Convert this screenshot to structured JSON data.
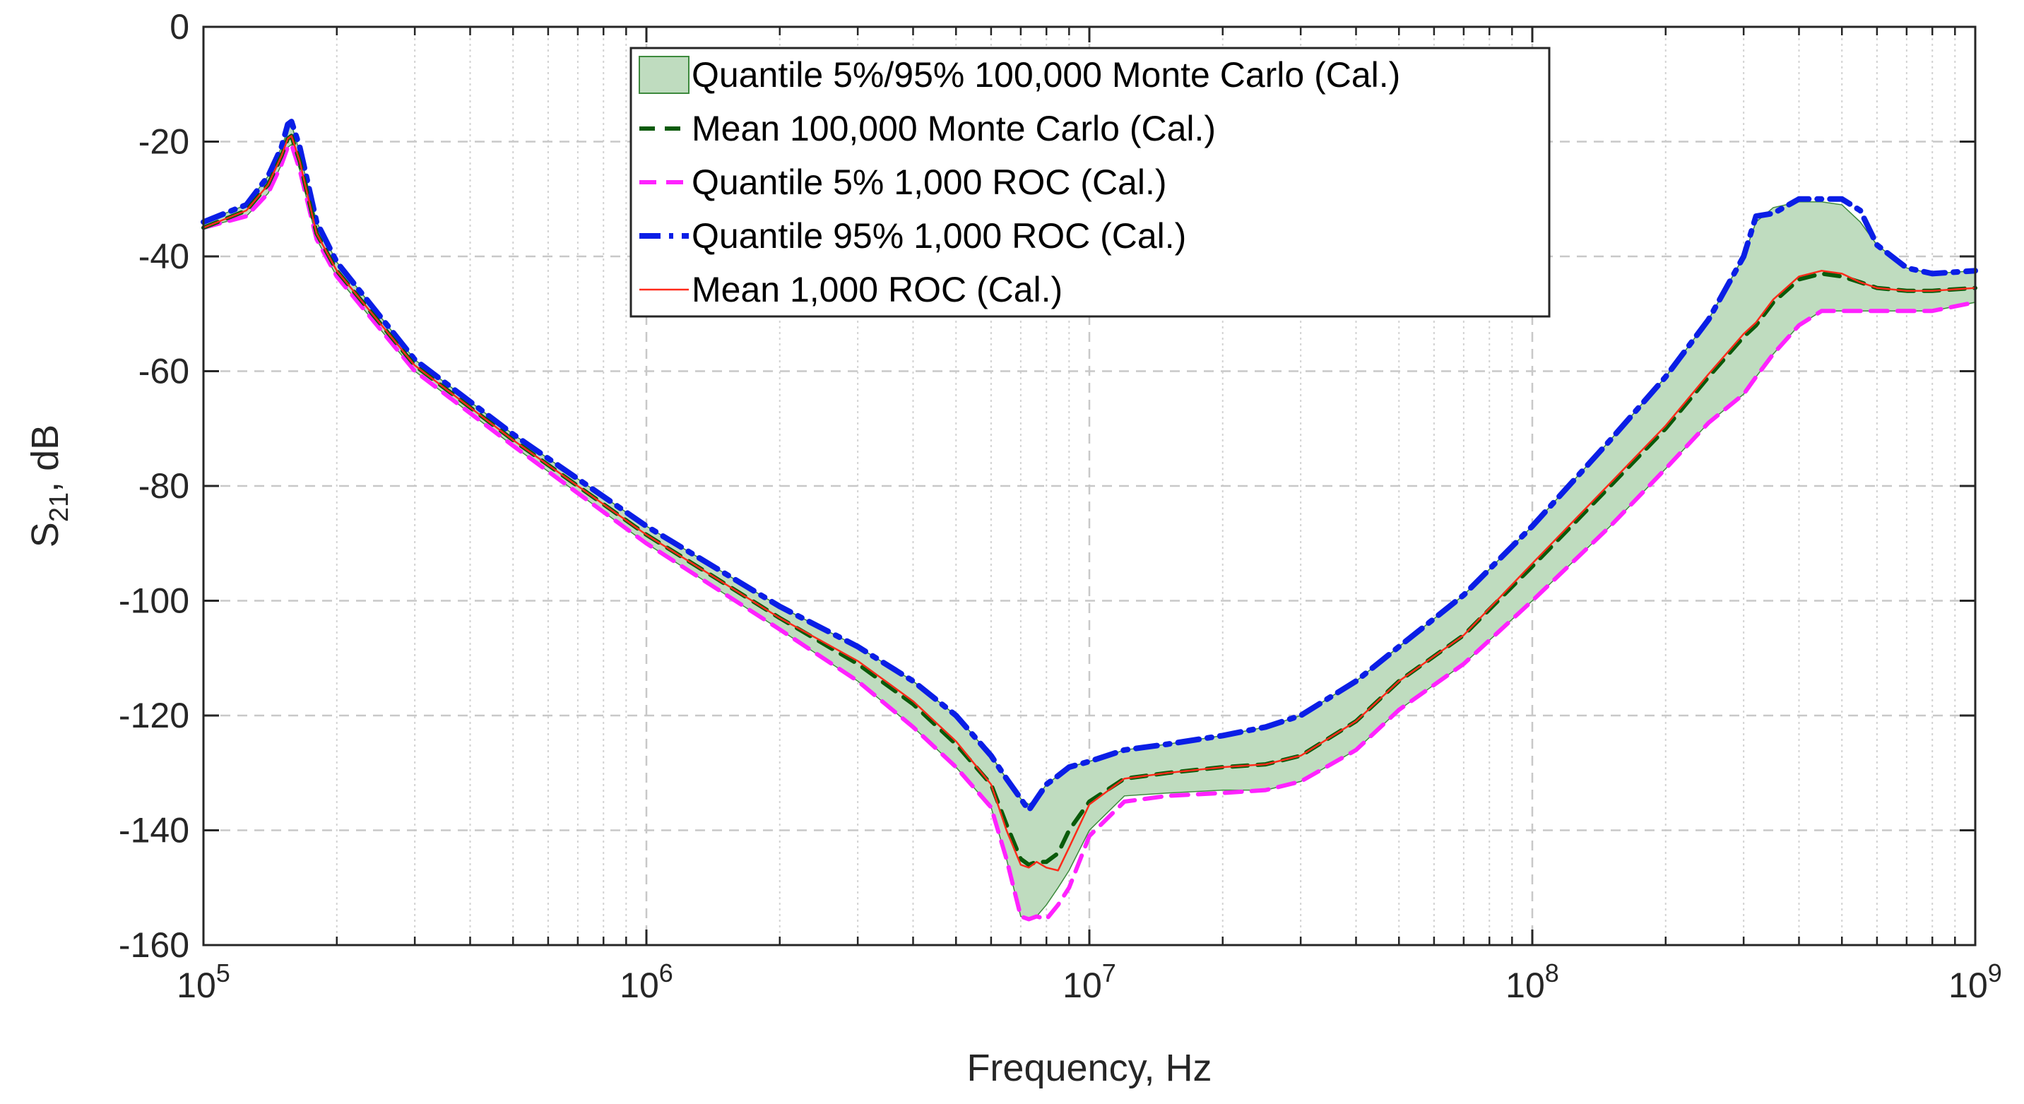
{
  "colors": {
    "band_fill": "#bfdcbf",
    "band_edge": "#3d8a3d",
    "mc_mean": "#0a5a0a",
    "roc_q5": "#ff22ff",
    "roc_q95": "#0a1ee6",
    "roc_mean": "#ff2a1a",
    "grid": "#c8c8c8",
    "axis": "#262626"
  },
  "chart_data": {
    "type": "line",
    "title": "",
    "xlabel": "Frequency, Hz",
    "ylabel_main": "S",
    "ylabel_sub": "21",
    "ylabel_tail": ", dB",
    "xscale": "log",
    "xlim": [
      100000,
      1000000000
    ],
    "ylim": [
      -160,
      0
    ],
    "grid": true,
    "legend_position": "top-center",
    "x_ticks": [
      {
        "value": 100000,
        "base": "10",
        "exp": "5"
      },
      {
        "value": 1000000,
        "base": "10",
        "exp": "6"
      },
      {
        "value": 10000000,
        "base": "10",
        "exp": "7"
      },
      {
        "value": 100000000,
        "base": "10",
        "exp": "8"
      },
      {
        "value": 1000000000,
        "base": "10",
        "exp": "9"
      }
    ],
    "y_ticks": [
      {
        "value": 0,
        "label": "0"
      },
      {
        "value": -20,
        "label": "-20"
      },
      {
        "value": -40,
        "label": "-40"
      },
      {
        "value": -60,
        "label": "-60"
      },
      {
        "value": -80,
        "label": "-80"
      },
      {
        "value": -100,
        "label": "-100"
      },
      {
        "value": -120,
        "label": "-120"
      },
      {
        "value": -140,
        "label": "-140"
      },
      {
        "value": -160,
        "label": "-160"
      }
    ],
    "x": [
      100000,
      125000,
      140000,
      150000,
      155000,
      158000,
      165000,
      180000,
      200000,
      300000,
      500000,
      1000000,
      2000000,
      3000000,
      4000000,
      5000000,
      6000000,
      6500000,
      7000000,
      7300000,
      7600000,
      8000000,
      8500000,
      9000000,
      10000000,
      12000000,
      15000000,
      20000000,
      25000000,
      30000000,
      40000000,
      50000000,
      70000000,
      100000000,
      150000000,
      200000000,
      250000000,
      300000000,
      320000000,
      350000000,
      400000000,
      450000000,
      500000000,
      550000000,
      600000000,
      700000000,
      800000000,
      1000000000
    ],
    "series": [
      {
        "name": "Quantile 5%/95% 100,000 Monte Carlo (Cal.)",
        "kind": "band",
        "upper": [
          -34,
          -31,
          -26,
          -21,
          -18,
          -17,
          -22,
          -34,
          -41,
          -58,
          -71,
          -87,
          -101,
          -108,
          -114,
          -120,
          -127,
          -131,
          -134.5,
          -135.5,
          -134.5,
          -132,
          -130.5,
          -129,
          -128,
          -126,
          -125,
          -123.5,
          -122,
          -120,
          -114,
          -108,
          -99,
          -87,
          -72,
          -61,
          -51,
          -40,
          -34,
          -31.5,
          -30.5,
          -30.5,
          -31,
          -34,
          -38,
          -42,
          -43,
          -42.5
        ],
        "lower": [
          -35,
          -33,
          -29,
          -24,
          -21,
          -20.5,
          -25,
          -37,
          -43.5,
          -60,
          -73,
          -90,
          -105,
          -114,
          -122,
          -129,
          -136,
          -145,
          -155,
          -155.5,
          -155,
          -153,
          -150,
          -147,
          -140,
          -134,
          -133.5,
          -133,
          -133,
          -131.5,
          -126,
          -119,
          -111,
          -100,
          -87,
          -77,
          -69,
          -64,
          -61,
          -57,
          -52,
          -49.5,
          -49.5,
          -49.5,
          -49.5,
          -49.5,
          -49.5,
          -48
        ]
      },
      {
        "name": "Mean 100,000 Monte Carlo (Cal.)",
        "kind": "line",
        "values": [
          -35,
          -32,
          -27.5,
          -22.5,
          -19.5,
          -19,
          -23.5,
          -36,
          -42.5,
          -59,
          -72,
          -88.5,
          -103,
          -111,
          -118,
          -125,
          -132,
          -139,
          -145,
          -146,
          -145.5,
          -145.5,
          -144,
          -140,
          -135,
          -131,
          -130,
          -129,
          -128.5,
          -127,
          -121,
          -114,
          -106,
          -94,
          -80,
          -70,
          -61,
          -54,
          -52,
          -48,
          -44,
          -43,
          -43.5,
          -44.5,
          -45.5,
          -46,
          -46,
          -45.5
        ]
      },
      {
        "name": "Quantile 5% 1,000 ROC (Cal.)",
        "kind": "line",
        "values": [
          -35,
          -33,
          -29,
          -24,
          -21,
          -20.5,
          -25,
          -37,
          -43.5,
          -60,
          -73,
          -90,
          -105,
          -114,
          -122,
          -129,
          -136,
          -145,
          -155,
          -155.5,
          -155,
          -155.5,
          -153,
          -150,
          -141,
          -135,
          -134,
          -133.5,
          -133,
          -131.5,
          -126,
          -119,
          -111,
          -100,
          -87,
          -77,
          -69,
          -64,
          -61,
          -57,
          -52,
          -49.5,
          -49.5,
          -49.5,
          -49.5,
          -49.5,
          -49.5,
          -48
        ]
      },
      {
        "name": "Quantile 95% 1,000 ROC (Cal.)",
        "kind": "line",
        "values": [
          -34,
          -31,
          -26,
          -21,
          -17,
          -16.5,
          -21,
          -34,
          -41,
          -58,
          -71,
          -87,
          -101,
          -108,
          -114,
          -120,
          -127,
          -131,
          -134.5,
          -136.5,
          -134.5,
          -132,
          -130.5,
          -129,
          -128,
          -126,
          -125,
          -123.5,
          -122,
          -120,
          -114,
          -108,
          -99,
          -87,
          -72,
          -61,
          -51,
          -40,
          -33,
          -32.5,
          -30,
          -30,
          -30,
          -32,
          -38,
          -42,
          -43,
          -42.5
        ]
      },
      {
        "name": "Mean 1,000 ROC (Cal.)",
        "kind": "line",
        "values": [
          -35,
          -32,
          -27.5,
          -22.5,
          -19.5,
          -19,
          -23.5,
          -36,
          -42.5,
          -59,
          -72,
          -88.5,
          -103,
          -110.5,
          -117.5,
          -124.5,
          -132,
          -140,
          -146,
          -146.5,
          -145.5,
          -146.5,
          -147,
          -143,
          -135.5,
          -131,
          -130,
          -129,
          -128.5,
          -127,
          -121,
          -114,
          -106,
          -93.5,
          -79.5,
          -69.5,
          -60.5,
          -53.5,
          -51.5,
          -47.5,
          -43.5,
          -42.5,
          -43,
          -44.5,
          -45.5,
          -46,
          -46,
          -45.5
        ]
      }
    ]
  },
  "legend": {
    "items": [
      {
        "label": "Quantile 5%/95% 100,000 Monte Carlo (Cal.)"
      },
      {
        "label": "Mean 100,000 Monte Carlo (Cal.)"
      },
      {
        "label": "Quantile 5% 1,000 ROC (Cal.)"
      },
      {
        "label": "Quantile 95% 1,000 ROC (Cal.)"
      },
      {
        "label": "Mean 1,000 ROC (Cal.)"
      }
    ]
  }
}
